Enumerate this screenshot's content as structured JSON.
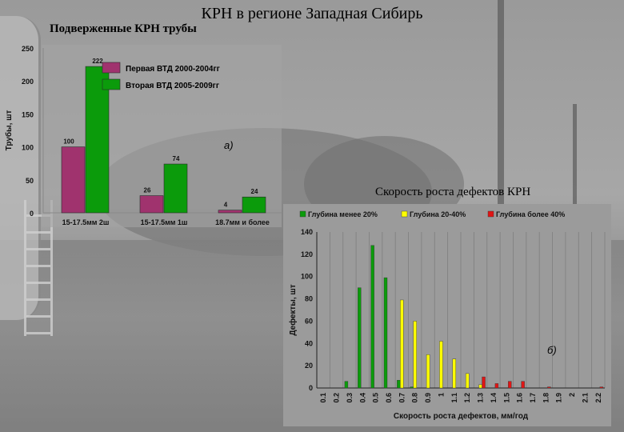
{
  "slide": {
    "title": "КРН в регионе Западная Сибирь",
    "subtitle": "Подверженные КРН трубы",
    "chart2_title": "Скорость роста дефектов КРН"
  },
  "colors": {
    "magenta": "#a0336e",
    "green": "#0b9b0b",
    "yellow": "#ffff00",
    "red": "#e01515"
  },
  "chart_data": [
    {
      "type": "bar",
      "panel_label": "а)",
      "ylabel": "Трубы, шт",
      "ylim": [
        0,
        250
      ],
      "yticks": [
        0,
        50,
        100,
        150,
        200,
        250
      ],
      "categories": [
        "15-17.5мм 2ш",
        "15-17.5мм 1ш",
        "18.7мм и более"
      ],
      "series": [
        {
          "name": "Первая ВТД 2000-2004гг",
          "values": [
            100,
            26,
            4
          ],
          "labels": [
            "100",
            "26",
            "4"
          ]
        },
        {
          "name": "Вторая ВТД 2005-2009гг",
          "values": [
            222,
            74,
            24
          ],
          "labels": [
            "222",
            "74",
            "24"
          ]
        }
      ],
      "legend": "top"
    },
    {
      "type": "bar",
      "panel_label": "б)",
      "xlabel": "Скорость роста дефектов, мм/год",
      "ylabel": "Дефекты, шт",
      "ylim": [
        0,
        140
      ],
      "yticks": [
        0,
        20,
        40,
        60,
        80,
        100,
        120,
        140
      ],
      "categories": [
        "0.1",
        "0.2",
        "0.3",
        "0.4",
        "0.5",
        "0.6",
        "0.7",
        "0.8",
        "0.9",
        "1",
        "1.1",
        "1.2",
        "1.3",
        "1.4",
        "1.5",
        "1.6",
        "1.7",
        "1.8",
        "1.9",
        "2",
        "2.1",
        "2.2"
      ],
      "series": [
        {
          "name": "Глубина менее 20%",
          "values": [
            0,
            0,
            6,
            90,
            128,
            99,
            7,
            1,
            0,
            0,
            0,
            0,
            0,
            0,
            0,
            0,
            0,
            0,
            0,
            0,
            0,
            0
          ]
        },
        {
          "name": "Глубина  20-40%",
          "values": [
            0,
            0,
            0,
            0,
            0,
            0,
            79,
            60,
            30,
            42,
            26,
            13,
            3,
            0,
            0,
            0,
            0,
            0,
            0,
            0,
            0,
            0
          ]
        },
        {
          "name": "Глубина более 40%",
          "values": [
            0,
            0,
            0,
            0,
            0,
            0,
            0,
            0,
            0,
            0,
            0,
            0,
            10,
            4,
            6,
            6,
            0,
            1,
            0,
            0,
            0,
            1
          ]
        }
      ],
      "legend": "top",
      "grid": true
    }
  ]
}
